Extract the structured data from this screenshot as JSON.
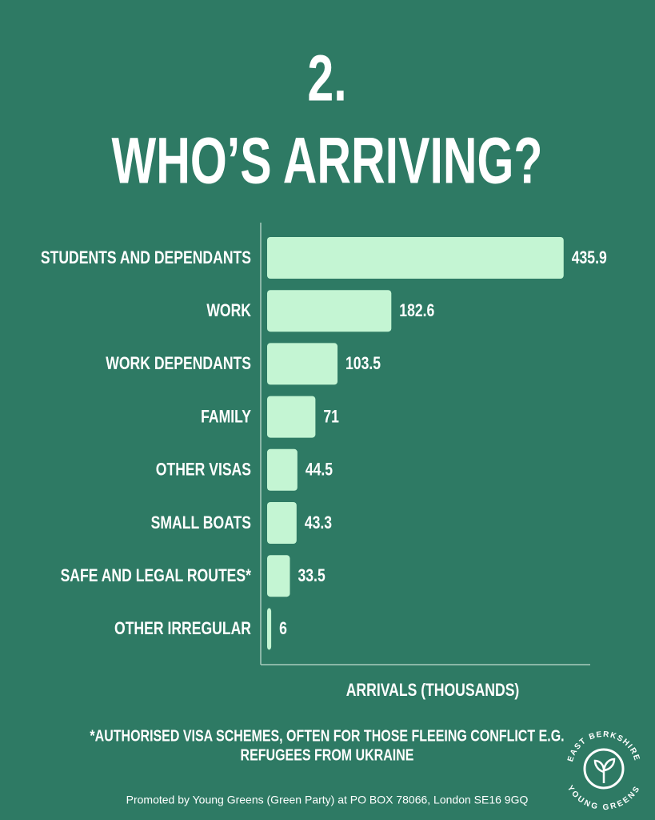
{
  "heading": "2.",
  "chart_data": {
    "type": "hbar",
    "title": "WHO’S ARRIVING?",
    "categories": [
      "STUDENTS AND DEPENDANTS",
      "WORK",
      "WORK DEPENDANTS",
      "FAMILY",
      "OTHER VISAS",
      "SMALL BOATS",
      "SAFE AND LEGAL ROUTES*",
      "OTHER IRREGULAR"
    ],
    "values": [
      435.9,
      182.6,
      103.5,
      71,
      44.5,
      43.3,
      33.5,
      6
    ],
    "color": "#c4f5d3",
    "xlabel": "ARRIVALS (THOUSANDS)",
    "xlim": [
      0,
      475
    ]
  },
  "footnote": [
    "*AUTHORISED VISA SCHEMES, OFTEN FOR THOSE FLEEING CONFLICT E.G.",
    "REFUGEES FROM UKRAINE"
  ],
  "credit": "Promoted by Young Greens (Green Party) at PO BOX 78066, London SE16 9GQ",
  "logo": {
    "top": "EAST BERKSHIRE",
    "bottom": "YOUNG GREENS"
  }
}
